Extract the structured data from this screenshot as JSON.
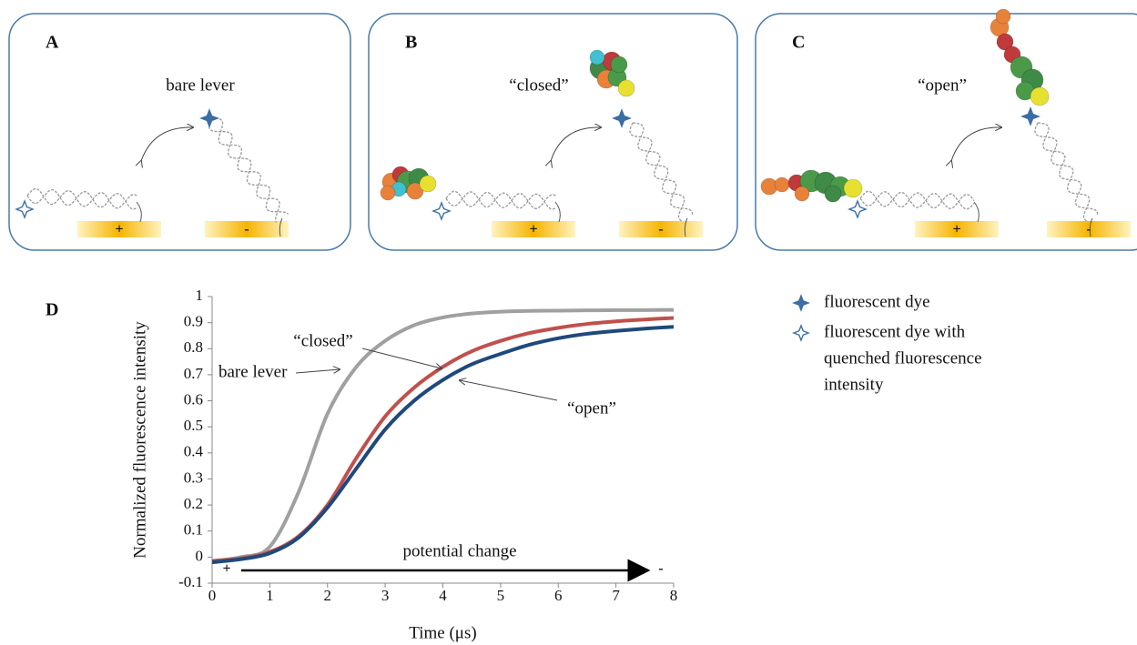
{
  "panels": [
    {
      "label": "A",
      "caption": "bare lever",
      "electrodes": [
        "+",
        "-"
      ]
    },
    {
      "label": "B",
      "caption": "“closed”",
      "electrodes": [
        "+",
        "-"
      ]
    },
    {
      "label": "C",
      "caption": "“open”",
      "electrodes": [
        "+",
        "-"
      ]
    }
  ],
  "chart_data": {
    "type": "line",
    "label": "D",
    "x_label": "Time (μs)",
    "y_label": "Normalized fluorescence intensity",
    "x": [
      0,
      0.5,
      1,
      1.5,
      2,
      2.5,
      3,
      3.5,
      4,
      4.5,
      5,
      5.5,
      6,
      6.5,
      7,
      7.5,
      8
    ],
    "series": [
      {
        "name": "bare lever",
        "color": "#a0a0a0",
        "values": [
          -0.015,
          0.0,
          0.04,
          0.25,
          0.55,
          0.73,
          0.83,
          0.89,
          0.92,
          0.935,
          0.942,
          0.945,
          0.946,
          0.947,
          0.948,
          0.948,
          0.949
        ]
      },
      {
        "name": "“closed”",
        "color": "#c0504d",
        "values": [
          -0.015,
          -0.005,
          0.02,
          0.08,
          0.2,
          0.38,
          0.54,
          0.65,
          0.73,
          0.79,
          0.83,
          0.86,
          0.88,
          0.895,
          0.905,
          0.912,
          0.918
        ]
      },
      {
        "name": "“open”",
        "color": "#1f497d",
        "values": [
          -0.02,
          -0.008,
          0.015,
          0.075,
          0.19,
          0.34,
          0.49,
          0.6,
          0.68,
          0.74,
          0.78,
          0.815,
          0.84,
          0.857,
          0.868,
          0.877,
          0.884
        ]
      }
    ],
    "xlim": [
      0,
      8
    ],
    "xticks": [
      0,
      1,
      2,
      3,
      4,
      5,
      6,
      7,
      8
    ],
    "ylim": [
      -0.1,
      1
    ],
    "yticks": [
      1,
      0.9,
      0.8,
      0.7,
      0.6,
      0.5,
      0.4,
      0.3,
      0.2,
      0.1,
      0,
      -0.1
    ],
    "annotations": [
      "potential change",
      "+",
      "-"
    ]
  },
  "legend": {
    "items": [
      {
        "lines": [
          "fluorescent dye"
        ]
      },
      {
        "lines": [
          "fluorescent dye with",
          "quenched fluorescence",
          "intensity"
        ]
      }
    ]
  }
}
